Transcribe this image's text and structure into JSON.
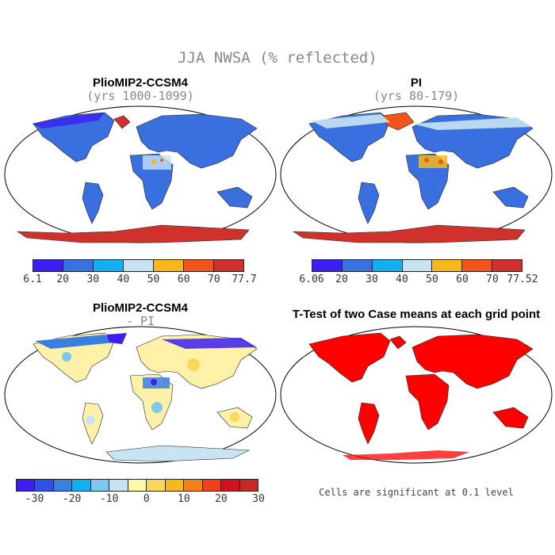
{
  "title": "JJA NWSA (% reflected)",
  "panels": {
    "top_left": {
      "title": "PlioMIP2-CCSM4",
      "subtitle": "(yrs 1000-1099)"
    },
    "top_right": {
      "title": "PI",
      "subtitle": "(yrs 80-179)"
    },
    "bottom_left": {
      "title": "PlioMIP2-CCSM4",
      "subtitle": "- PI"
    },
    "bottom_right": {
      "title": "T-Test of two Case means at each grid point",
      "note": "Cells are significant at 0.1 level"
    }
  },
  "colorbars": {
    "top_left": {
      "labels": [
        "6.1",
        "20",
        "30",
        "40",
        "50",
        "60",
        "70",
        "77.7"
      ],
      "colors": [
        "#3a1ff0",
        "#3a6fe0",
        "#12b0f0",
        "#c8e4f2",
        "#f6b81c",
        "#f1551b",
        "#d0312d"
      ]
    },
    "top_right": {
      "labels": [
        "6.06",
        "20",
        "30",
        "40",
        "50",
        "60",
        "70",
        "77.52"
      ],
      "colors": [
        "#3a1ff0",
        "#3a6fe0",
        "#12b0f0",
        "#c8e4f2",
        "#f6b81c",
        "#f1551b",
        "#d0312d"
      ]
    },
    "bottom_left": {
      "labels": [
        "-30",
        "-20",
        "-10",
        "0",
        "10",
        "20",
        "30"
      ],
      "colors": [
        "#3a1ff0",
        "#2f4fe6",
        "#3a7fe0",
        "#12b0f0",
        "#7cc8ee",
        "#c8e4f2",
        "#fff8a8",
        "#f8d85a",
        "#f6b81c",
        "#f48018",
        "#f1401b",
        "#d0121d",
        "#c82828"
      ]
    }
  },
  "colors": {
    "ocean": "#ffffff",
    "land_blue": "#3a6fe0",
    "significant": "#ff0000",
    "anomaly_land": "#fff2a8"
  }
}
